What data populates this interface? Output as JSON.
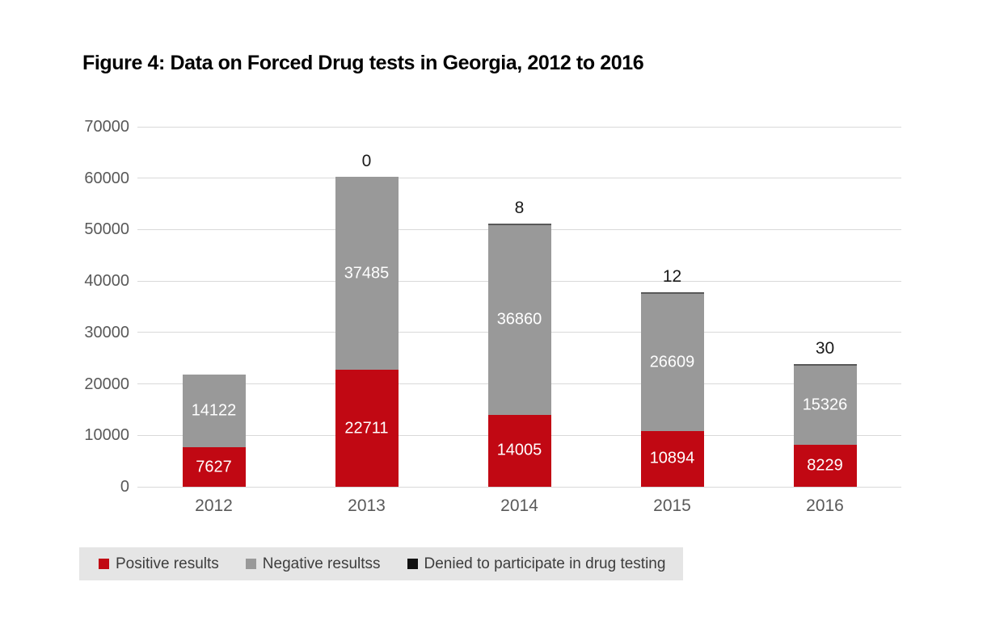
{
  "title": "Figure 4: Data on Forced Drug tests in Georgia, 2012 to 2016",
  "chart_data": {
    "type": "bar",
    "stacked": true,
    "title": "Figure 4: Data on Forced Drug tests in Georgia, 2012 to 2016",
    "categories": [
      "2012",
      "2013",
      "2014",
      "2015",
      "2016"
    ],
    "series": [
      {
        "name": "Positive results",
        "color": "#c10813",
        "values": [
          7627,
          22711,
          14005,
          10894,
          8229
        ],
        "value_labels": [
          "7627",
          "22711",
          "14005",
          "10894",
          "8229"
        ],
        "label_color": "#ffffff",
        "label_placement": "inside"
      },
      {
        "name": "Negative resultss",
        "color": "#999999",
        "values": [
          14122,
          37485,
          36860,
          26609,
          15326
        ],
        "value_labels": [
          "14122",
          "37485",
          "36860",
          "26609",
          "15326"
        ],
        "label_color": "#ffffff",
        "label_placement": "inside"
      },
      {
        "name": "Denied to participate in drug testing",
        "color": "#111111",
        "values": [
          null,
          0,
          8,
          12,
          30
        ],
        "value_labels": [
          null,
          "0",
          "8",
          "12",
          "30"
        ],
        "label_color": "#1a1a1a",
        "label_placement": "above-bar"
      }
    ],
    "xlabel": "",
    "ylabel": "",
    "ylim": [
      0,
      70000
    ],
    "yticks": [
      0,
      10000,
      20000,
      30000,
      40000,
      50000,
      60000,
      70000
    ],
    "ytick_labels": [
      "0",
      "10000",
      "20000",
      "30000",
      "40000",
      "50000",
      "60000",
      "70000"
    ],
    "grid": true,
    "legend_position": "bottom"
  },
  "colors": {
    "background": "#ffffff",
    "gridline": "#d9d9d9",
    "tick_text": "#595959",
    "title_text": "#000000",
    "legend_background": "#e5e5e5",
    "legend_text": "#3d3d3d",
    "bar_value_text": "#ffffff",
    "above_bar_text": "#1a1a1a"
  }
}
